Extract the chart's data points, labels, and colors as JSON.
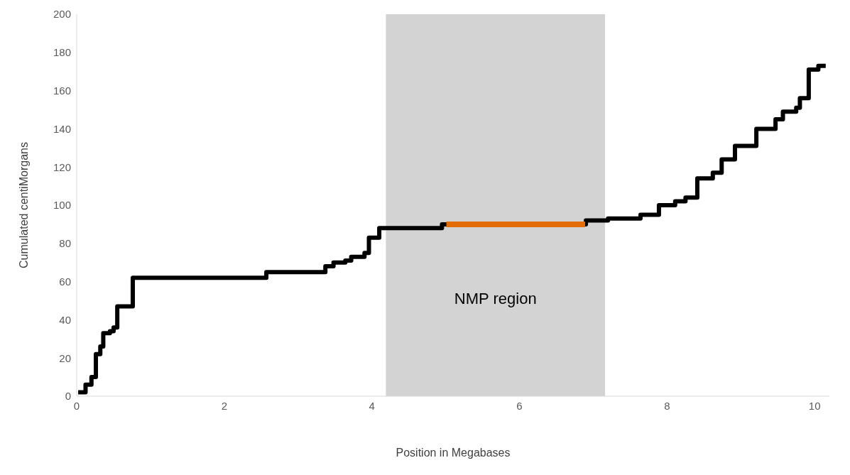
{
  "chart_data": {
    "type": "step",
    "xlabel": "Position in Megabases",
    "ylabel": "Cumulated centiMorgans",
    "xlim": [
      0,
      10.2
    ],
    "xticks": [
      0,
      2,
      4,
      6,
      8,
      10
    ],
    "ylim": [
      0,
      200
    ],
    "yticks": [
      0,
      20,
      40,
      60,
      80,
      100,
      120,
      140,
      160,
      180,
      200
    ],
    "grid": false,
    "legend": false,
    "marker": "none",
    "line_style": "solid",
    "bands": [
      {
        "axis": "x",
        "from": 4.19,
        "to": 7.16,
        "label": "NMP region",
        "color": "#d3d3d3"
      }
    ],
    "series": [
      {
        "color": "#000000",
        "x": [
          0.02,
          0.12,
          0.2,
          0.26,
          0.32,
          0.36,
          0.45,
          0.5,
          0.55,
          0.76,
          2.57,
          3.37,
          3.48,
          3.64,
          3.72,
          3.9,
          3.96,
          4.1,
          4.95,
          6.9,
          7.2,
          7.64,
          7.89,
          8.11,
          8.25,
          8.41,
          8.62,
          8.74,
          8.92,
          9.21,
          9.47,
          9.57,
          9.75,
          9.8,
          9.92,
          10.05,
          10.15
        ],
        "values": [
          2,
          6,
          10,
          22,
          26,
          33,
          34,
          36,
          47,
          62,
          65,
          68,
          70,
          71,
          73,
          75,
          83,
          88,
          90,
          92,
          93,
          95,
          100,
          102,
          104,
          114,
          117,
          124,
          131,
          140,
          145,
          149,
          151,
          156,
          171,
          173,
          173
        ]
      },
      {
        "color": "#e36c09",
        "x": [
          5.01,
          6.89
        ],
        "values": [
          90,
          90
        ]
      }
    ]
  }
}
